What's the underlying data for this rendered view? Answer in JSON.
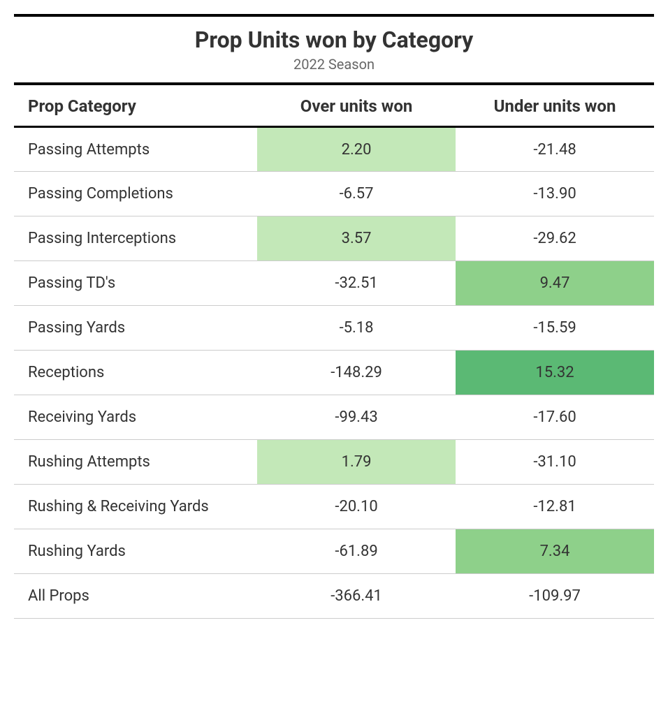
{
  "title": "Prop Units won by Category",
  "subtitle": "2022 Season",
  "columns": [
    "Prop Category",
    "Over units won",
    "Under units won"
  ],
  "highlight_colors": {
    "none": "transparent",
    "light": "#c3e8b8",
    "medium": "#8ed08a",
    "dark": "#5bb974"
  },
  "rows": [
    {
      "category": "Passing Attempts",
      "over": "2.20",
      "over_hl": "light",
      "under": "-21.48",
      "under_hl": "none"
    },
    {
      "category": "Passing Completions",
      "over": "-6.57",
      "over_hl": "none",
      "under": "-13.90",
      "under_hl": "none"
    },
    {
      "category": "Passing Interceptions",
      "over": "3.57",
      "over_hl": "light",
      "under": "-29.62",
      "under_hl": "none"
    },
    {
      "category": "Passing TD's",
      "over": "-32.51",
      "over_hl": "none",
      "under": "9.47",
      "under_hl": "medium"
    },
    {
      "category": "Passing Yards",
      "over": "-5.18",
      "over_hl": "none",
      "under": "-15.59",
      "under_hl": "none"
    },
    {
      "category": "Receptions",
      "over": "-148.29",
      "over_hl": "none",
      "under": "15.32",
      "under_hl": "dark"
    },
    {
      "category": "Receiving Yards",
      "over": "-99.43",
      "over_hl": "none",
      "under": "-17.60",
      "under_hl": "none"
    },
    {
      "category": "Rushing Attempts",
      "over": "1.79",
      "over_hl": "light",
      "under": "-31.10",
      "under_hl": "none"
    },
    {
      "category": "Rushing & Receiving Yards",
      "over": "-20.10",
      "over_hl": "none",
      "under": "-12.81",
      "under_hl": "none"
    },
    {
      "category": "Rushing Yards",
      "over": "-61.89",
      "over_hl": "none",
      "under": "7.34",
      "under_hl": "medium"
    },
    {
      "category": "All Props",
      "over": "-366.41",
      "over_hl": "none",
      "under": "-109.97",
      "under_hl": "none"
    }
  ],
  "col_widths": {
    "category": "38%",
    "over": "31%",
    "under": "31%"
  }
}
